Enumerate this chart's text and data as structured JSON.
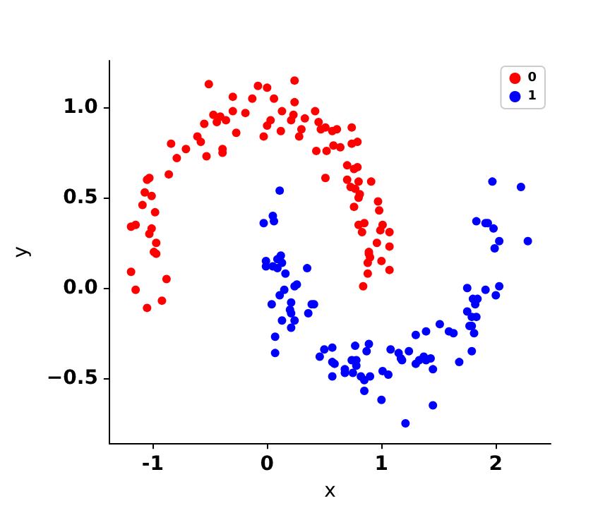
{
  "chart_data": {
    "type": "scatter",
    "xlabel": "x",
    "ylabel": "y",
    "xlim": [
      -1.38,
      2.48
    ],
    "ylim": [
      -0.86,
      1.26
    ],
    "xticks": [
      -1,
      0,
      1,
      2
    ],
    "yticks": [
      {
        "value": -0.5,
        "label": "−0.5"
      },
      {
        "value": 0,
        "label": "0.0"
      },
      {
        "value": 0.5,
        "label": "0.5"
      },
      {
        "value": 1,
        "label": "1.0"
      }
    ],
    "grid": false,
    "legend": "top right",
    "marker": "circle",
    "series": [
      {
        "name": "0",
        "color": "#ff0000",
        "x": [
          -0.51,
          -0.08,
          0.0,
          0.24,
          -0.3,
          -0.13,
          0.06,
          0.24,
          -0.47,
          -0.41,
          -0.36,
          -0.44,
          -0.3,
          -0.19,
          0.13,
          0.03,
          0.0,
          0.23,
          0.21,
          0.33,
          0.42,
          0.45,
          0.47,
          0.12,
          0.3,
          0.28,
          -0.03,
          -0.27,
          -0.55,
          -0.61,
          -0.58,
          -0.53,
          -0.39,
          -0.39,
          -0.71,
          -0.84,
          -0.79,
          -0.86,
          0.43,
          0.52,
          0.51,
          -1.05,
          -1.03,
          -1.07,
          -1.01,
          -1.09,
          -0.98,
          -1.19,
          -1.15,
          -1.01,
          -1.03,
          -0.97,
          -0.99,
          0.51,
          0.57,
          0.61,
          0.74,
          0.58,
          0.64,
          0.74,
          0.79,
          0.7,
          0.76,
          0.79,
          0.7,
          0.8,
          0.91,
          0.73,
          0.77,
          0.81,
          0.8,
          0.76,
          0.97,
          0.98,
          0.8,
          0.85,
          1.01,
          0.83,
          0.99,
          1.07,
          0.96,
          1.07,
          0.89,
          0.89,
          0.9,
          0.88,
          1.0,
          1.07,
          0.88,
          0.84,
          -0.97,
          -1.19,
          -0.88,
          -1.15,
          -0.92,
          -1.05
        ],
        "values": [
          1.13,
          1.12,
          1.11,
          1.15,
          1.06,
          1.05,
          1.05,
          1.03,
          0.96,
          0.95,
          0.93,
          0.92,
          0.98,
          0.97,
          0.98,
          0.93,
          0.9,
          0.96,
          0.93,
          0.94,
          0.98,
          0.92,
          0.88,
          0.87,
          0.88,
          0.84,
          0.84,
          0.86,
          0.91,
          0.84,
          0.81,
          0.73,
          0.77,
          0.75,
          0.77,
          0.8,
          0.72,
          0.63,
          0.76,
          0.76,
          0.61,
          0.6,
          0.61,
          0.53,
          0.51,
          0.46,
          0.42,
          0.34,
          0.35,
          0.33,
          0.3,
          0.25,
          0.2,
          0.89,
          0.87,
          0.88,
          0.89,
          0.79,
          0.78,
          0.8,
          0.81,
          0.68,
          0.66,
          0.67,
          0.6,
          0.59,
          0.59,
          0.56,
          0.55,
          0.52,
          0.5,
          0.45,
          0.48,
          0.43,
          0.35,
          0.36,
          0.35,
          0.31,
          0.32,
          0.31,
          0.25,
          0.23,
          0.2,
          0.19,
          0.17,
          0.14,
          0.15,
          0.1,
          0.08,
          0.01,
          0.19,
          0.09,
          0.05,
          -0.01,
          -0.07,
          -0.11
        ]
      },
      {
        "name": "1",
        "color": "#0000ff",
        "x": [
          0.11,
          0.05,
          -0.03,
          0.06,
          -0.01,
          -0.01,
          0.05,
          0.09,
          0.12,
          0.09,
          0.13,
          0.35,
          0.16,
          0.26,
          0.24,
          0.15,
          0.11,
          0.04,
          0.21,
          0.39,
          0.2,
          0.21,
          0.36,
          0.24,
          0.13,
          0.21,
          0.07,
          0.07,
          0.5,
          0.46,
          0.41,
          0.57,
          0.57,
          0.59,
          0.57,
          0.68,
          0.68,
          0.74,
          0.77,
          0.87,
          0.89,
          0.78,
          0.78,
          0.75,
          0.82,
          0.85,
          0.9,
          0.85,
          1.0,
          1.01,
          1.06,
          1.08,
          1.15,
          1.17,
          1.18,
          1.24,
          1.3,
          1.3,
          1.33,
          1.37,
          1.39,
          1.39,
          1.43,
          1.45,
          1.45,
          1.21,
          1.51,
          1.59,
          1.63,
          1.68,
          1.75,
          1.8,
          1.84,
          1.82,
          1.75,
          1.79,
          1.83,
          1.77,
          1.79,
          1.81,
          1.79,
          1.91,
          2.0,
          2.03,
          1.99,
          2.03,
          2.28,
          1.97,
          2.22,
          1.83,
          1.91,
          1.93,
          1.98
        ],
        "values": [
          0.54,
          0.4,
          0.36,
          0.37,
          0.15,
          0.12,
          0.12,
          0.11,
          0.18,
          0.16,
          0.14,
          0.11,
          0.08,
          0.02,
          0.01,
          -0.01,
          -0.04,
          -0.09,
          -0.08,
          -0.09,
          -0.12,
          -0.14,
          -0.14,
          -0.18,
          -0.18,
          -0.22,
          -0.27,
          -0.36,
          -0.34,
          -0.38,
          -0.09,
          -0.33,
          -0.41,
          -0.42,
          -0.49,
          -0.45,
          -0.47,
          -0.4,
          -0.32,
          -0.35,
          -0.31,
          -0.4,
          -0.43,
          -0.47,
          -0.49,
          -0.51,
          -0.49,
          -0.57,
          -0.62,
          -0.46,
          -0.48,
          -0.34,
          -0.36,
          -0.39,
          -0.4,
          -0.35,
          -0.26,
          -0.42,
          -0.4,
          -0.38,
          -0.24,
          -0.4,
          -0.39,
          -0.45,
          -0.65,
          -0.75,
          -0.2,
          -0.24,
          -0.25,
          -0.41,
          0.0,
          -0.06,
          -0.06,
          -0.09,
          -0.13,
          -0.16,
          -0.16,
          -0.21,
          -0.21,
          -0.25,
          -0.35,
          -0.01,
          -0.04,
          0.01,
          0.22,
          0.26,
          0.26,
          0.59,
          0.56,
          0.37,
          0.36,
          0.36,
          0.33
        ]
      }
    ]
  }
}
